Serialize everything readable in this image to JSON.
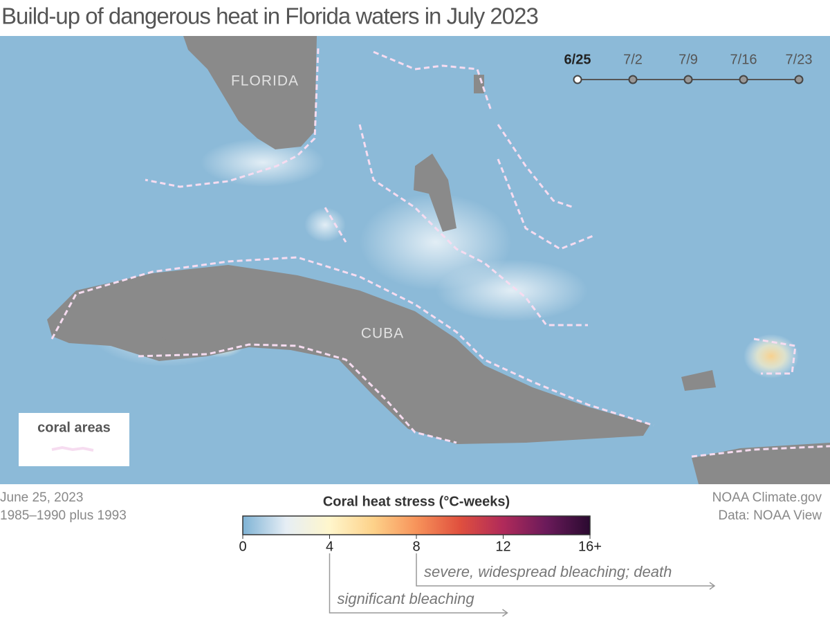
{
  "title": "Build-up of dangerous heat in Florida waters in July 2023",
  "map": {
    "labels": [
      "FLORIDA",
      "CUBA"
    ]
  },
  "timeline": {
    "dates": [
      "6/25",
      "7/2",
      "7/9",
      "7/16",
      "7/23"
    ],
    "active": 0
  },
  "legend_box": {
    "label": "coral areas"
  },
  "footer": {
    "date": "June 25, 2023",
    "baseline": "1985–1990 plus 1993",
    "credit": "NOAA Climate.gov",
    "source": "Data: NOAA View"
  },
  "colorbar": {
    "title": "Coral heat stress (°C-weeks)",
    "range": [
      0,
      16
    ],
    "ticks": [
      0,
      4,
      8,
      12,
      {
        "value": 16,
        "label": "16+"
      }
    ],
    "colors": [
      "#7fb3d5",
      "#e6eef5",
      "#fff6cc",
      "#fdd28a",
      "#f7935a",
      "#e0503e",
      "#b02a5a",
      "#6a1a5a",
      "#2a0a30"
    ]
  },
  "thresholds": [
    {
      "value": 4,
      "label": "significant bleaching"
    },
    {
      "value": 8,
      "label": "severe, widespread bleaching; death"
    }
  ]
}
